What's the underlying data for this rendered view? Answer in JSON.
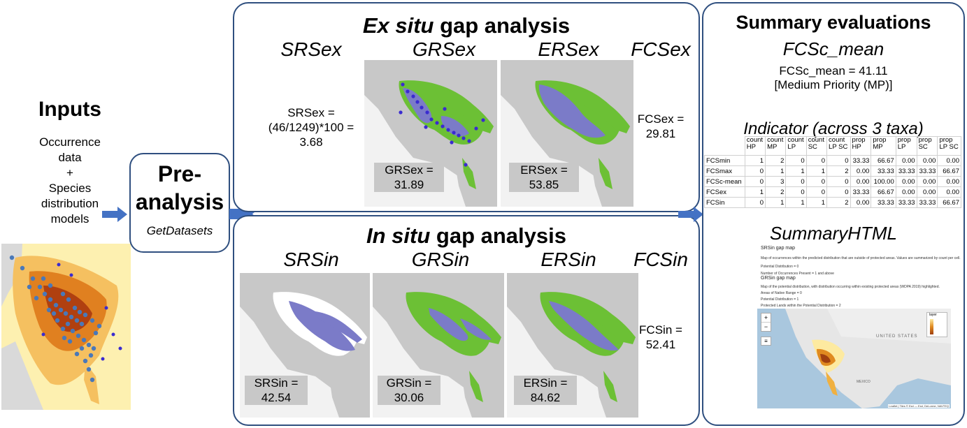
{
  "inputs": {
    "title": "Inputs",
    "lines": [
      "Occurrence",
      "data",
      "+",
      "Species",
      "distribution",
      "models"
    ]
  },
  "pre": {
    "title_line1": "Pre-",
    "title_line2": "analysis",
    "function": "GetDatasets"
  },
  "exsitu": {
    "title_italic": "Ex situ",
    "title_rest": " gap analysis",
    "srs_header": "SRSex",
    "grs_header": "GRSex",
    "ers_header": "ERSex",
    "fcs_header": "FCSex",
    "srs_value_lines": [
      "SRSex =",
      "(46/1249)*100 =",
      "3.68"
    ],
    "grs_value_lines": [
      "GRSex =",
      "31.89"
    ],
    "ers_value_lines": [
      "ERSex =",
      "53.85"
    ],
    "fcs_value_lines": [
      "FCSex =",
      "29.81"
    ]
  },
  "insitu": {
    "title_italic": "In situ",
    "title_rest": " gap analysis",
    "srs_header": "SRSin",
    "grs_header": "GRSin",
    "ers_header": "ERSin",
    "fcs_header": "FCSin",
    "srs_value_lines": [
      "SRSin =",
      "42.54"
    ],
    "grs_value_lines": [
      "GRSin =",
      "30.06"
    ],
    "ers_value_lines": [
      "ERSin =",
      "84.62"
    ],
    "fcs_value_lines": [
      "FCSin =",
      "52.41"
    ]
  },
  "summary": {
    "title": "Summary evaluations",
    "fcsc_header": "FCSc_mean",
    "fcsc_line1": "FCSc_mean = 41.11",
    "fcsc_line2": "[Medium Priority (MP)]",
    "indicator_header": "Indicator (across 3 taxa)",
    "html_header": "SummaryHTML"
  },
  "indicator_table": {
    "columns": [
      [
        "count",
        "HP"
      ],
      [
        "count",
        "MP"
      ],
      [
        "count",
        "LP"
      ],
      [
        "count",
        "SC"
      ],
      [
        "count",
        "LP SC"
      ],
      [
        "prop",
        "HP"
      ],
      [
        "prop",
        "MP"
      ],
      [
        "prop",
        "LP"
      ],
      [
        "prop",
        "SC"
      ],
      [
        "prop",
        "LP SC"
      ]
    ],
    "rows": [
      {
        "label": "FCSmin",
        "values": [
          "1",
          "2",
          "0",
          "0",
          "0",
          "33.33",
          "66.67",
          "0.00",
          "0.00",
          "0.00"
        ]
      },
      {
        "label": "FCSmax",
        "values": [
          "0",
          "1",
          "1",
          "1",
          "2",
          "0.00",
          "33.33",
          "33.33",
          "33.33",
          "66.67"
        ]
      },
      {
        "label": "FCSc-mean",
        "values": [
          "0",
          "3",
          "0",
          "0",
          "0",
          "0.00",
          "100.00",
          "0.00",
          "0.00",
          "0.00"
        ]
      },
      {
        "label": "FCSex",
        "values": [
          "1",
          "2",
          "0",
          "0",
          "0",
          "33.33",
          "66.67",
          "0.00",
          "0.00",
          "0.00"
        ]
      },
      {
        "label": "FCSin",
        "values": [
          "0",
          "1",
          "1",
          "1",
          "2",
          "0.00",
          "33.33",
          "33.33",
          "33.33",
          "66.67"
        ]
      }
    ]
  },
  "summary_html_preview": {
    "heading1": "SRSin gap map",
    "text1": "Map of occurrences within the predicted distribution that are outside of protected areas. Values are summarized by count per cell.",
    "legend1a": "Potential Distribution = 0",
    "legend1b": "Number of Occurrences Present = 1 and above",
    "heading2": "GRSin gap map",
    "text2": "Map of the potential distribution, with distribution occurring within existing protected areas (WDPA 2019) highlighted.",
    "legend2a": "Areas of Native Range = 0",
    "legend2b": "Potential Distribution = 1",
    "legend2c": "Protected Lands within the Potential Distribution = 2",
    "map_label_us": "UNITED STATES",
    "map_label_mx": "MEXICO",
    "map_legend_title": "layer",
    "attribution": "Leaflet | Tiles © Esri — Esri, DeLorme, NAVTEQ"
  },
  "colors": {
    "panel_border": "#2f4f7f",
    "arrow": "#4472c4",
    "land": "#c8c8c8",
    "sea": "#f2f2f2",
    "distribution_green": "#6cc035",
    "gap_purple": "#7b7bc8",
    "points": "#3a2bd0"
  }
}
